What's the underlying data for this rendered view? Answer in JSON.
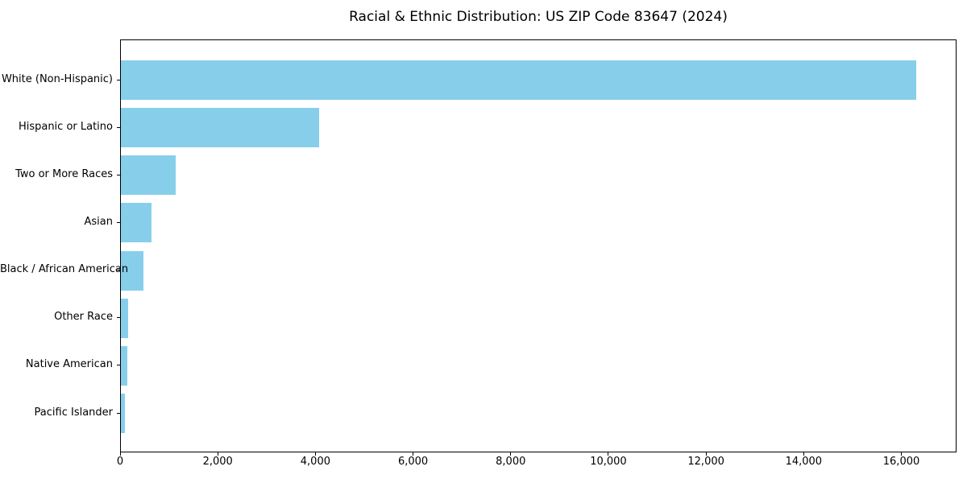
{
  "chart_data": {
    "type": "bar",
    "orientation": "horizontal",
    "title": "Racial & Ethnic Distribution: US ZIP Code 83647 (2024)",
    "categories": [
      "White (Non-Hispanic)",
      "Hispanic or Latino",
      "Two or More Races",
      "Asian",
      "Black / African American",
      "Other Race",
      "Native American",
      "Pacific Islander"
    ],
    "values": [
      16290,
      4065,
      1130,
      620,
      460,
      155,
      128,
      85
    ],
    "x_ticks": [
      {
        "value": 0,
        "label": "0"
      },
      {
        "value": 2000,
        "label": "2,000"
      },
      {
        "value": 4000,
        "label": "4,000"
      },
      {
        "value": 6000,
        "label": "6,000"
      },
      {
        "value": 8000,
        "label": "8,000"
      },
      {
        "value": 10000,
        "label": "10,000"
      },
      {
        "value": 12000,
        "label": "12,000"
      },
      {
        "value": 14000,
        "label": "14,000"
      },
      {
        "value": 16000,
        "label": "16,000"
      }
    ],
    "xlabel": "",
    "ylabel": "",
    "xlim": [
      0,
      17130
    ],
    "grid": false,
    "legend": null,
    "bar_color": "#87CEEB",
    "axis_color": "#000000",
    "background_color": "#FFFFFF"
  }
}
